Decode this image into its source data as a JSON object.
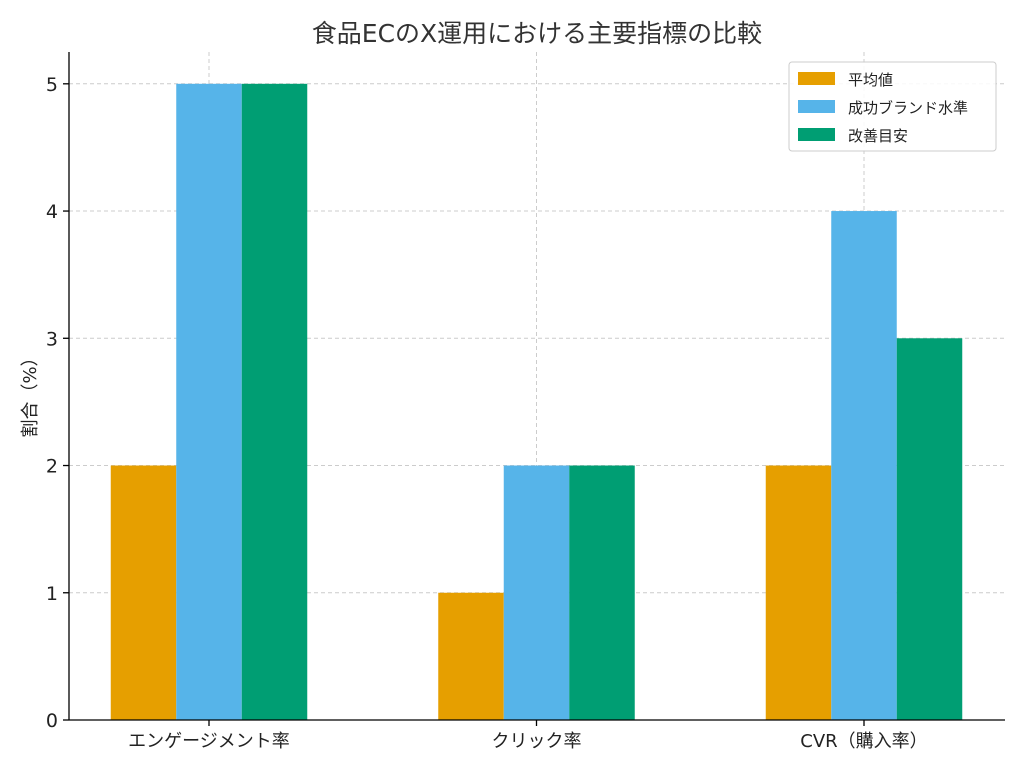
{
  "chart_data": {
    "type": "bar",
    "title": "食品ECのX運用における主要指標の比較",
    "ylabel": "割合（%）",
    "categories": [
      "エンゲージメント率",
      "クリック率",
      "CVR（購入率）"
    ],
    "series": [
      {
        "name": "平均値",
        "values": [
          2,
          1,
          2
        ],
        "color": "#E69F00"
      },
      {
        "name": "成功ブランド水準",
        "values": [
          5,
          2,
          4
        ],
        "color": "#56B4E9"
      },
      {
        "name": "改善目安",
        "values": [
          5,
          2,
          3
        ],
        "color": "#009E73"
      }
    ],
    "ylim": [
      0,
      5.25
    ],
    "yticks": [
      "0",
      "1",
      "2",
      "3",
      "4",
      "5"
    ],
    "grid": true,
    "legend_position": "top-right"
  }
}
